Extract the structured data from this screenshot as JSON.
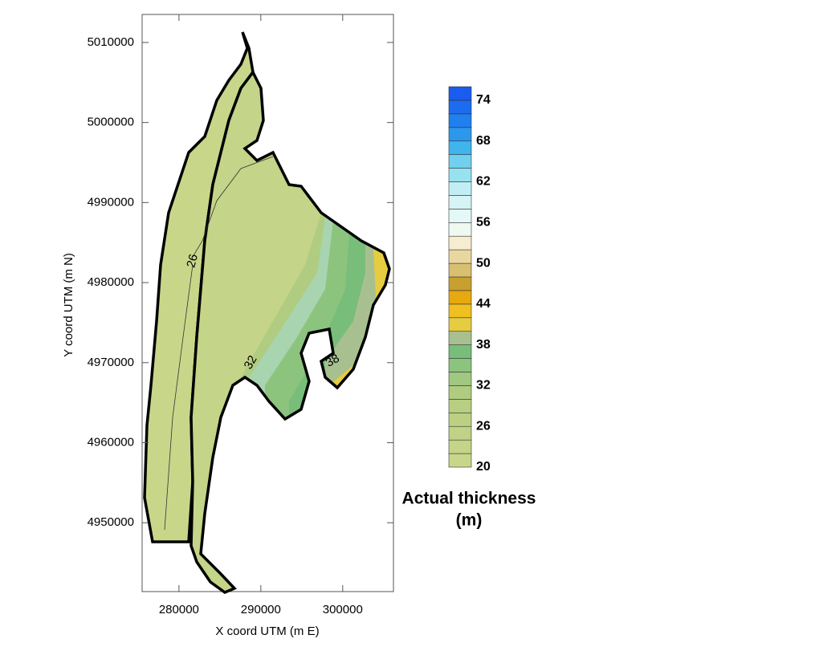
{
  "map": {
    "x_label": "X coord UTM (m E)",
    "y_label": "Y coord UTM (m N)",
    "xlim": [
      275500,
      306200
    ],
    "ylim": [
      4941400,
      5013500
    ],
    "xticks": [
      280000,
      290000,
      300000
    ],
    "yticks": [
      4950000,
      4960000,
      4970000,
      4980000,
      4990000,
      5000000,
      5010000
    ],
    "contour_labels": [
      {
        "value": 26,
        "x": 281700,
        "y": 4982700
      },
      {
        "value": 32,
        "x": 288800,
        "y": 4970000
      },
      {
        "value": 38,
        "x": 298800,
        "y": 4970200
      }
    ],
    "colorbar": {
      "title_lines": [
        "Actual thickness",
        "(m)"
      ],
      "lim": [
        20,
        76
      ],
      "ticks": [
        20,
        26,
        32,
        38,
        44,
        50,
        56,
        62,
        68,
        74
      ],
      "levels": [
        20,
        22,
        24,
        26,
        28,
        30,
        32,
        34,
        36,
        38,
        40,
        42,
        44,
        46,
        48,
        50,
        52,
        54,
        56,
        58,
        60,
        62,
        64,
        66,
        68,
        70,
        72,
        74,
        76
      ],
      "colors": [
        "#c8d68a",
        "#c4d488",
        "#c0d286",
        "#bcd084",
        "#b8ce82",
        "#b0cc80",
        "#a0c880",
        "#8cc47e",
        "#78be7a",
        "#a8c090",
        "#e6cc40",
        "#f0c020",
        "#e8a810",
        "#c8a030",
        "#d8c070",
        "#e8d8a0",
        "#f6ecd0",
        "#eefaf0",
        "#e4f8f8",
        "#d6f4f6",
        "#c0eef4",
        "#98e2f0",
        "#70d0ee",
        "#40b4ec",
        "#2c98ec",
        "#2080f0",
        "#1c6cf0",
        "#1a5cf0"
      ]
    }
  }
}
